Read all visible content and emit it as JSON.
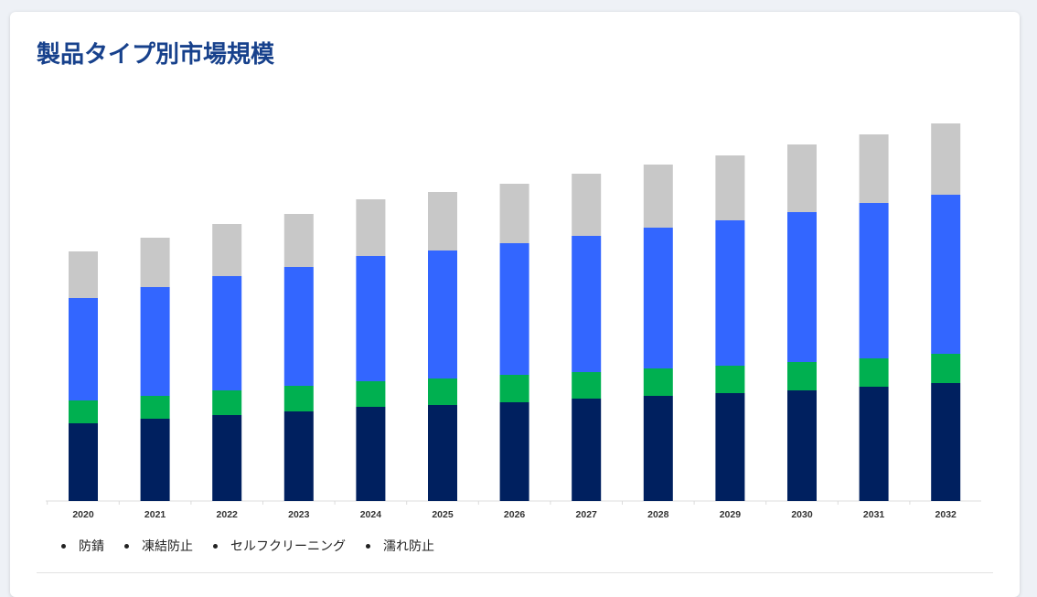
{
  "title": "製品タイプ別市場規模",
  "chart_data": {
    "type": "bar",
    "stacked": true,
    "title": "製品タイプ別市場規模",
    "xlabel": "",
    "ylabel": "",
    "categories": [
      "2020",
      "2021",
      "2022",
      "2023",
      "2024",
      "2025",
      "2026",
      "2027",
      "2028",
      "2029",
      "2030",
      "2031",
      "2032"
    ],
    "series": [
      {
        "name": "防錆",
        "color": "#00205f",
        "values": [
          85,
          90,
          94,
          98,
          103,
          105,
          108,
          112,
          115,
          118,
          121,
          125,
          129
        ]
      },
      {
        "name": "凍結防止",
        "color": "#00b050",
        "values": [
          25,
          25,
          27,
          28,
          28,
          29,
          30,
          29,
          30,
          30,
          31,
          31,
          32
        ]
      },
      {
        "name": "セルフクリーニング",
        "color": "#3366ff",
        "values": [
          112,
          119,
          125,
          130,
          137,
          140,
          144,
          149,
          154,
          159,
          164,
          170,
          174
        ]
      },
      {
        "name": "濡れ防止",
        "color": "#c8c8c8",
        "values": [
          51,
          54,
          57,
          58,
          62,
          64,
          65,
          68,
          69,
          71,
          74,
          75,
          78
        ]
      }
    ],
    "grid": false,
    "y_axis_shown": false,
    "legend_placement": "bottom-left"
  }
}
